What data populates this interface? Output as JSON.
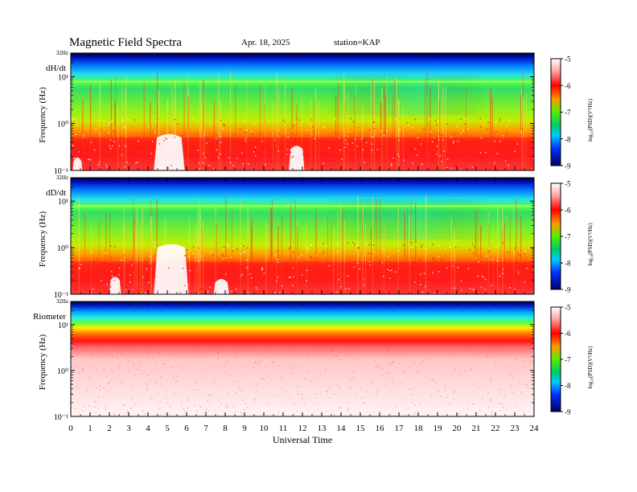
{
  "header": {
    "title": "Magnetic  Field  Spectra",
    "date": "Apr. 18, 2025",
    "station": "station=KAP"
  },
  "chart_data": [
    {
      "type": "heatmap",
      "panel_label": "dH/dt",
      "ylabel": "Frequency  (Hz)",
      "y_ticks": [
        "10⁻¹",
        "10⁰",
        "10¹",
        "32Hz"
      ],
      "y_scale": "log",
      "ylim": [
        0.1,
        32
      ],
      "xlim": [
        0,
        24
      ],
      "colorbar": {
        "label": "log₁₀(PSD)(V²/Hz)",
        "ticks": [
          "-5",
          "-6",
          "-7",
          "-8",
          "-9"
        ],
        "range": [
          -9,
          -5
        ]
      }
    },
    {
      "type": "heatmap",
      "panel_label": "dD/dt",
      "ylabel": "Frequency  (Hz)",
      "y_ticks": [
        "10⁻¹",
        "10⁰",
        "10¹",
        "32Hz"
      ],
      "y_scale": "log",
      "ylim": [
        0.1,
        32
      ],
      "xlim": [
        0,
        24
      ],
      "colorbar": {
        "label": "log₁₀(PSD)(V²/Hz)",
        "ticks": [
          "-5",
          "-6",
          "-7",
          "-8",
          "-9"
        ],
        "range": [
          -9,
          -5
        ]
      }
    },
    {
      "type": "heatmap",
      "panel_label": "Riometer",
      "ylabel": "Frequency  (Hz)",
      "y_ticks": [
        "10⁻¹",
        "10⁰",
        "10¹",
        "32Hz"
      ],
      "y_scale": "log",
      "ylim": [
        0.1,
        32
      ],
      "xlim": [
        0,
        24
      ],
      "colorbar": {
        "label": "log₁₀(PSD)(V²/Hz)",
        "ticks": [
          "-5",
          "-6",
          "-7",
          "-8",
          "-9"
        ],
        "range": [
          -9,
          -5
        ]
      }
    }
  ],
  "x_axis": {
    "label": "Universal Time",
    "ticks": [
      "0",
      "1",
      "2",
      "3",
      "4",
      "5",
      "6",
      "7",
      "8",
      "9",
      "10",
      "11",
      "12",
      "13",
      "14",
      "15",
      "16",
      "17",
      "18",
      "19",
      "20",
      "21",
      "22",
      "23",
      "24"
    ]
  }
}
